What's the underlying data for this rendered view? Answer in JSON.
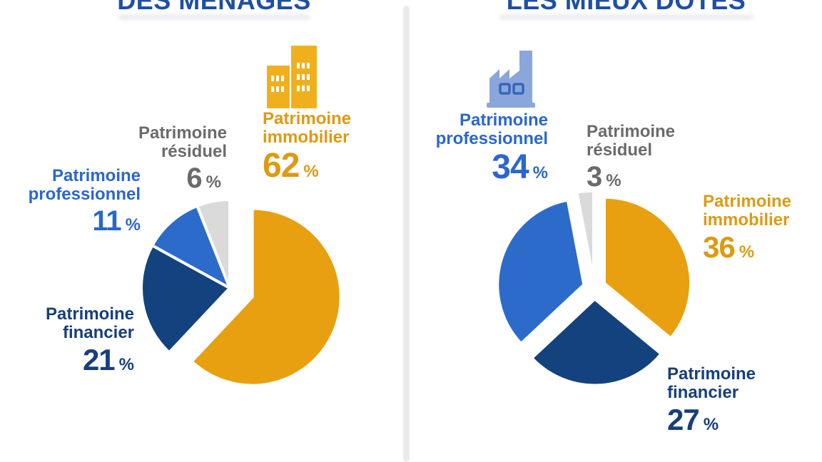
{
  "palette": {
    "amber_slice": "#E89F10",
    "navy_slice": "#13427F",
    "blue_slice": "#2D6BCB",
    "gray_slice": "#DADADA",
    "title_blue": "#1E4FA5",
    "orange_text": "#DE9A12",
    "blue_text": "#2A67CE",
    "navy_text": "#163F7C",
    "gray_text": "#6B6B6B",
    "building_icon": "#F0B01E",
    "factory_icon": "#8AA6DB",
    "factory_window_stroke": "#3466BE",
    "divider_gray": "#EBEBEE"
  },
  "chart_data": [
    {
      "type": "pie",
      "title": "DES MÉNAGES",
      "categories": [
        "Patrimoine immobilier",
        "Patrimoine financier",
        "Patrimoine professionnel",
        "Patrimoine résiduel"
      ],
      "values": [
        62,
        21,
        11,
        6
      ],
      "unit": "%",
      "colors": [
        "#E89F10",
        "#13427F",
        "#2D6BCB",
        "#DADADA"
      ],
      "start_angle_deg": 0,
      "direction": "clockwise",
      "exploded_slices": [
        "Patrimoine immobilier"
      ],
      "legend_position": "around-slices"
    },
    {
      "type": "pie",
      "title": "LES MIEUX DOTÉS",
      "categories": [
        "Patrimoine immobilier",
        "Patrimoine financier",
        "Patrimoine professionnel",
        "Patrimoine résiduel"
      ],
      "values": [
        36,
        27,
        34,
        3
      ],
      "unit": "%",
      "colors": [
        "#E89F10",
        "#13427F",
        "#2D6BCB",
        "#DADADA"
      ],
      "start_angle_deg": 0,
      "direction": "clockwise",
      "exploded_slices": [
        "Patrimoine immobilier",
        "Patrimoine financier",
        "Patrimoine professionnel",
        "Patrimoine résiduel"
      ],
      "legend_position": "around-slices"
    }
  ],
  "panels": {
    "left": {
      "title": "DES MÉNAGES",
      "icon": "building-icon",
      "labels": [
        {
          "id": "immobilier",
          "line1": "Patrimoine",
          "line2": "immobilier",
          "value": "62",
          "unit": "%"
        },
        {
          "id": "residuel",
          "line1": "Patrimoine",
          "line2": "résiduel",
          "value": "6",
          "unit": "%"
        },
        {
          "id": "professionnel",
          "line1": "Patrimoine",
          "line2": "professionnel",
          "value": "11",
          "unit": "%"
        },
        {
          "id": "financier",
          "line1": "Patrimoine",
          "line2": "financier",
          "value": "21",
          "unit": "%"
        }
      ]
    },
    "right": {
      "title": "LES MIEUX DOTÉS",
      "icon": "factory-icon",
      "labels": [
        {
          "id": "immobilier",
          "line1": "Patrimoine",
          "line2": "immobilier",
          "value": "36",
          "unit": "%"
        },
        {
          "id": "residuel",
          "line1": "Patrimoine",
          "line2": "résiduel",
          "value": "3",
          "unit": "%"
        },
        {
          "id": "professionnel",
          "line1": "Patrimoine",
          "line2": "professionnel",
          "value": "34",
          "unit": "%"
        },
        {
          "id": "financier",
          "line1": "Patrimoine",
          "line2": "financier",
          "value": "27",
          "unit": "%"
        }
      ]
    }
  }
}
